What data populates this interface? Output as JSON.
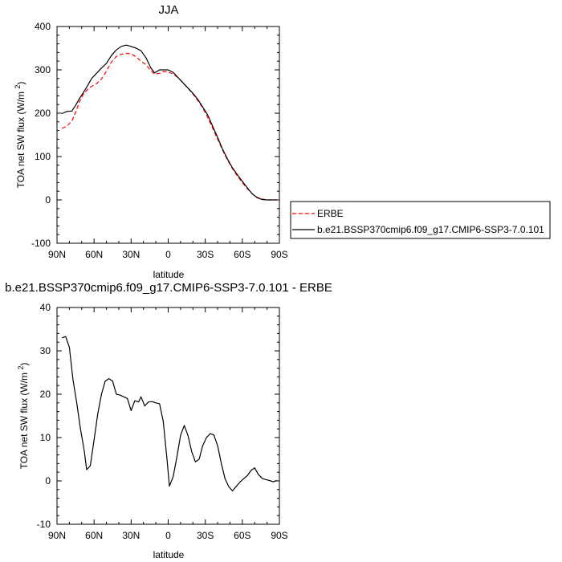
{
  "chart_data": [
    {
      "type": "line",
      "title": "JJA",
      "xlabel": "latitude",
      "ylabel": "TOA net SW flux (W/m2)",
      "xlim": [
        90,
        -90
      ],
      "ylim": [
        -100,
        400
      ],
      "yticks": [
        -100,
        0,
        100,
        200,
        300,
        400
      ],
      "xticks": [
        {
          "value": 90,
          "label": "90N"
        },
        {
          "value": 60,
          "label": "60N"
        },
        {
          "value": 30,
          "label": "30N"
        },
        {
          "value": 0,
          "label": "0"
        },
        {
          "value": -30,
          "label": "30S"
        },
        {
          "value": -60,
          "label": "60S"
        },
        {
          "value": -90,
          "label": "90S"
        }
      ],
      "legend_position": "right",
      "series": [
        {
          "name": "ERBE",
          "color": "#ff0000",
          "dash": "dashed",
          "points": [
            [
              86,
              165
            ],
            [
              82,
              170
            ],
            [
              78,
              182
            ],
            [
              75,
              202
            ],
            [
              72,
              225
            ],
            [
              69,
              243
            ],
            [
              65,
              256
            ],
            [
              62,
              262
            ],
            [
              58,
              268
            ],
            [
              54,
              279
            ],
            [
              50,
              297
            ],
            [
              46,
              318
            ],
            [
              42,
              331
            ],
            [
              38,
              336
            ],
            [
              34,
              338
            ],
            [
              30,
              337
            ],
            [
              26,
              330
            ],
            [
              22,
              320
            ],
            [
              18,
              312
            ],
            [
              14,
              298
            ],
            [
              11,
              290
            ],
            [
              7,
              292
            ],
            [
              4,
              296
            ],
            [
              0,
              295
            ],
            [
              -4,
              290
            ],
            [
              -8,
              282
            ],
            [
              -12,
              270
            ],
            [
              -16,
              258
            ],
            [
              -20,
              244
            ],
            [
              -24,
              229
            ],
            [
              -28,
              212
            ],
            [
              -32,
              190
            ],
            [
              -36,
              165
            ],
            [
              -40,
              140
            ],
            [
              -44,
              115
            ],
            [
              -48,
              92
            ],
            [
              -52,
              72
            ],
            [
              -56,
              55
            ],
            [
              -60,
              40
            ],
            [
              -64,
              26
            ],
            [
              -68,
              14
            ],
            [
              -72,
              6
            ],
            [
              -76,
              2
            ],
            [
              -80,
              0
            ],
            [
              -84,
              0
            ],
            [
              -88,
              0
            ]
          ]
        },
        {
          "name": "b.e21.BSSP370cmip6.f09_g17.CMIP6-SSP3-7.0.101",
          "color": "#000000",
          "dash": "solid",
          "points": [
            [
              86,
              199
            ],
            [
              82,
              204
            ],
            [
              78,
              205
            ],
            [
              75,
              218
            ],
            [
              72,
              233
            ],
            [
              69,
              246
            ],
            [
              65,
              265
            ],
            [
              62,
              280
            ],
            [
              58,
              292
            ],
            [
              54,
              304
            ],
            [
              50,
              315
            ],
            [
              46,
              333
            ],
            [
              42,
              346
            ],
            [
              38,
              354
            ],
            [
              34,
              357
            ],
            [
              30,
              354
            ],
            [
              26,
              350
            ],
            [
              22,
              344
            ],
            [
              18,
              328
            ],
            [
              14,
              304
            ],
            [
              11,
              293
            ],
            [
              7,
              300
            ],
            [
              4,
              300
            ],
            [
              0,
              300
            ],
            [
              -4,
              294
            ],
            [
              -8,
              282
            ],
            [
              -12,
              270
            ],
            [
              -16,
              258
            ],
            [
              -20,
              246
            ],
            [
              -24,
              232
            ],
            [
              -28,
              214
            ],
            [
              -32,
              196
            ],
            [
              -36,
              170
            ],
            [
              -40,
              144
            ],
            [
              -44,
              117
            ],
            [
              -48,
              94
            ],
            [
              -52,
              74
            ],
            [
              -56,
              58
            ],
            [
              -60,
              43
            ],
            [
              -64,
              28
            ],
            [
              -68,
              14
            ],
            [
              -72,
              5
            ],
            [
              -76,
              1
            ],
            [
              -80,
              0
            ],
            [
              -84,
              0
            ],
            [
              -88,
              0
            ]
          ]
        }
      ]
    },
    {
      "type": "line",
      "title": "b.e21.BSSP370cmip6.f09_g17.CMIP6-SSP3-7.0.101 - ERBE",
      "xlabel": "latitude",
      "ylabel": "TOA net SW flux (W/m2)",
      "xlim": [
        90,
        -90
      ],
      "ylim": [
        -10,
        40
      ],
      "yticks": [
        -10,
        0,
        10,
        20,
        30,
        40
      ],
      "xticks": [
        {
          "value": 90,
          "label": "90N"
        },
        {
          "value": 60,
          "label": "60N"
        },
        {
          "value": 30,
          "label": "30N"
        },
        {
          "value": 0,
          "label": "0"
        },
        {
          "value": -30,
          "label": "30S"
        },
        {
          "value": -60,
          "label": "60S"
        },
        {
          "value": -90,
          "label": "90S"
        }
      ],
      "series": [
        {
          "color": "#000000",
          "dash": "solid",
          "points": [
            [
              86,
              33.0
            ],
            [
              83,
              33.3
            ],
            [
              80,
              30.8
            ],
            [
              77,
              23.2
            ],
            [
              74,
              18.0
            ],
            [
              71,
              12.0
            ],
            [
              68,
              7.0
            ],
            [
              66,
              2.6
            ],
            [
              63,
              3.5
            ],
            [
              60,
              9.5
            ],
            [
              57,
              15.5
            ],
            [
              54,
              20.0
            ],
            [
              51,
              23.0
            ],
            [
              48,
              23.6
            ],
            [
              45,
              23.0
            ],
            [
              42,
              20.0
            ],
            [
              39,
              19.8
            ],
            [
              36,
              19.4
            ],
            [
              33,
              19.0
            ],
            [
              30,
              16.2
            ],
            [
              27,
              18.5
            ],
            [
              24,
              18.2
            ],
            [
              22,
              19.4
            ],
            [
              19,
              17.3
            ],
            [
              16,
              18.2
            ],
            [
              13,
              18.3
            ],
            [
              10,
              18.0
            ],
            [
              7,
              17.8
            ],
            [
              4,
              13.8
            ],
            [
              1,
              5.0
            ],
            [
              -1,
              -1.2
            ],
            [
              -4,
              1.0
            ],
            [
              -7,
              5.5
            ],
            [
              -10,
              10.5
            ],
            [
              -13,
              12.8
            ],
            [
              -16,
              10.5
            ],
            [
              -19,
              6.8
            ],
            [
              -22,
              4.4
            ],
            [
              -25,
              5.0
            ],
            [
              -28,
              8.2
            ],
            [
              -31,
              10.0
            ],
            [
              -34,
              10.9
            ],
            [
              -37,
              10.6
            ],
            [
              -40,
              8.1
            ],
            [
              -43,
              4.0
            ],
            [
              -46,
              0.5
            ],
            [
              -49,
              -1.3
            ],
            [
              -52,
              -2.3
            ],
            [
              -55,
              -1.3
            ],
            [
              -58,
              -0.3
            ],
            [
              -61,
              0.5
            ],
            [
              -64,
              1.2
            ],
            [
              -67,
              2.4
            ],
            [
              -70,
              3.0
            ],
            [
              -73,
              1.5
            ],
            [
              -76,
              0.6
            ],
            [
              -79,
              0.3
            ],
            [
              -82,
              0.1
            ],
            [
              -85,
              -0.2
            ],
            [
              -88,
              0.1
            ]
          ]
        }
      ]
    }
  ]
}
